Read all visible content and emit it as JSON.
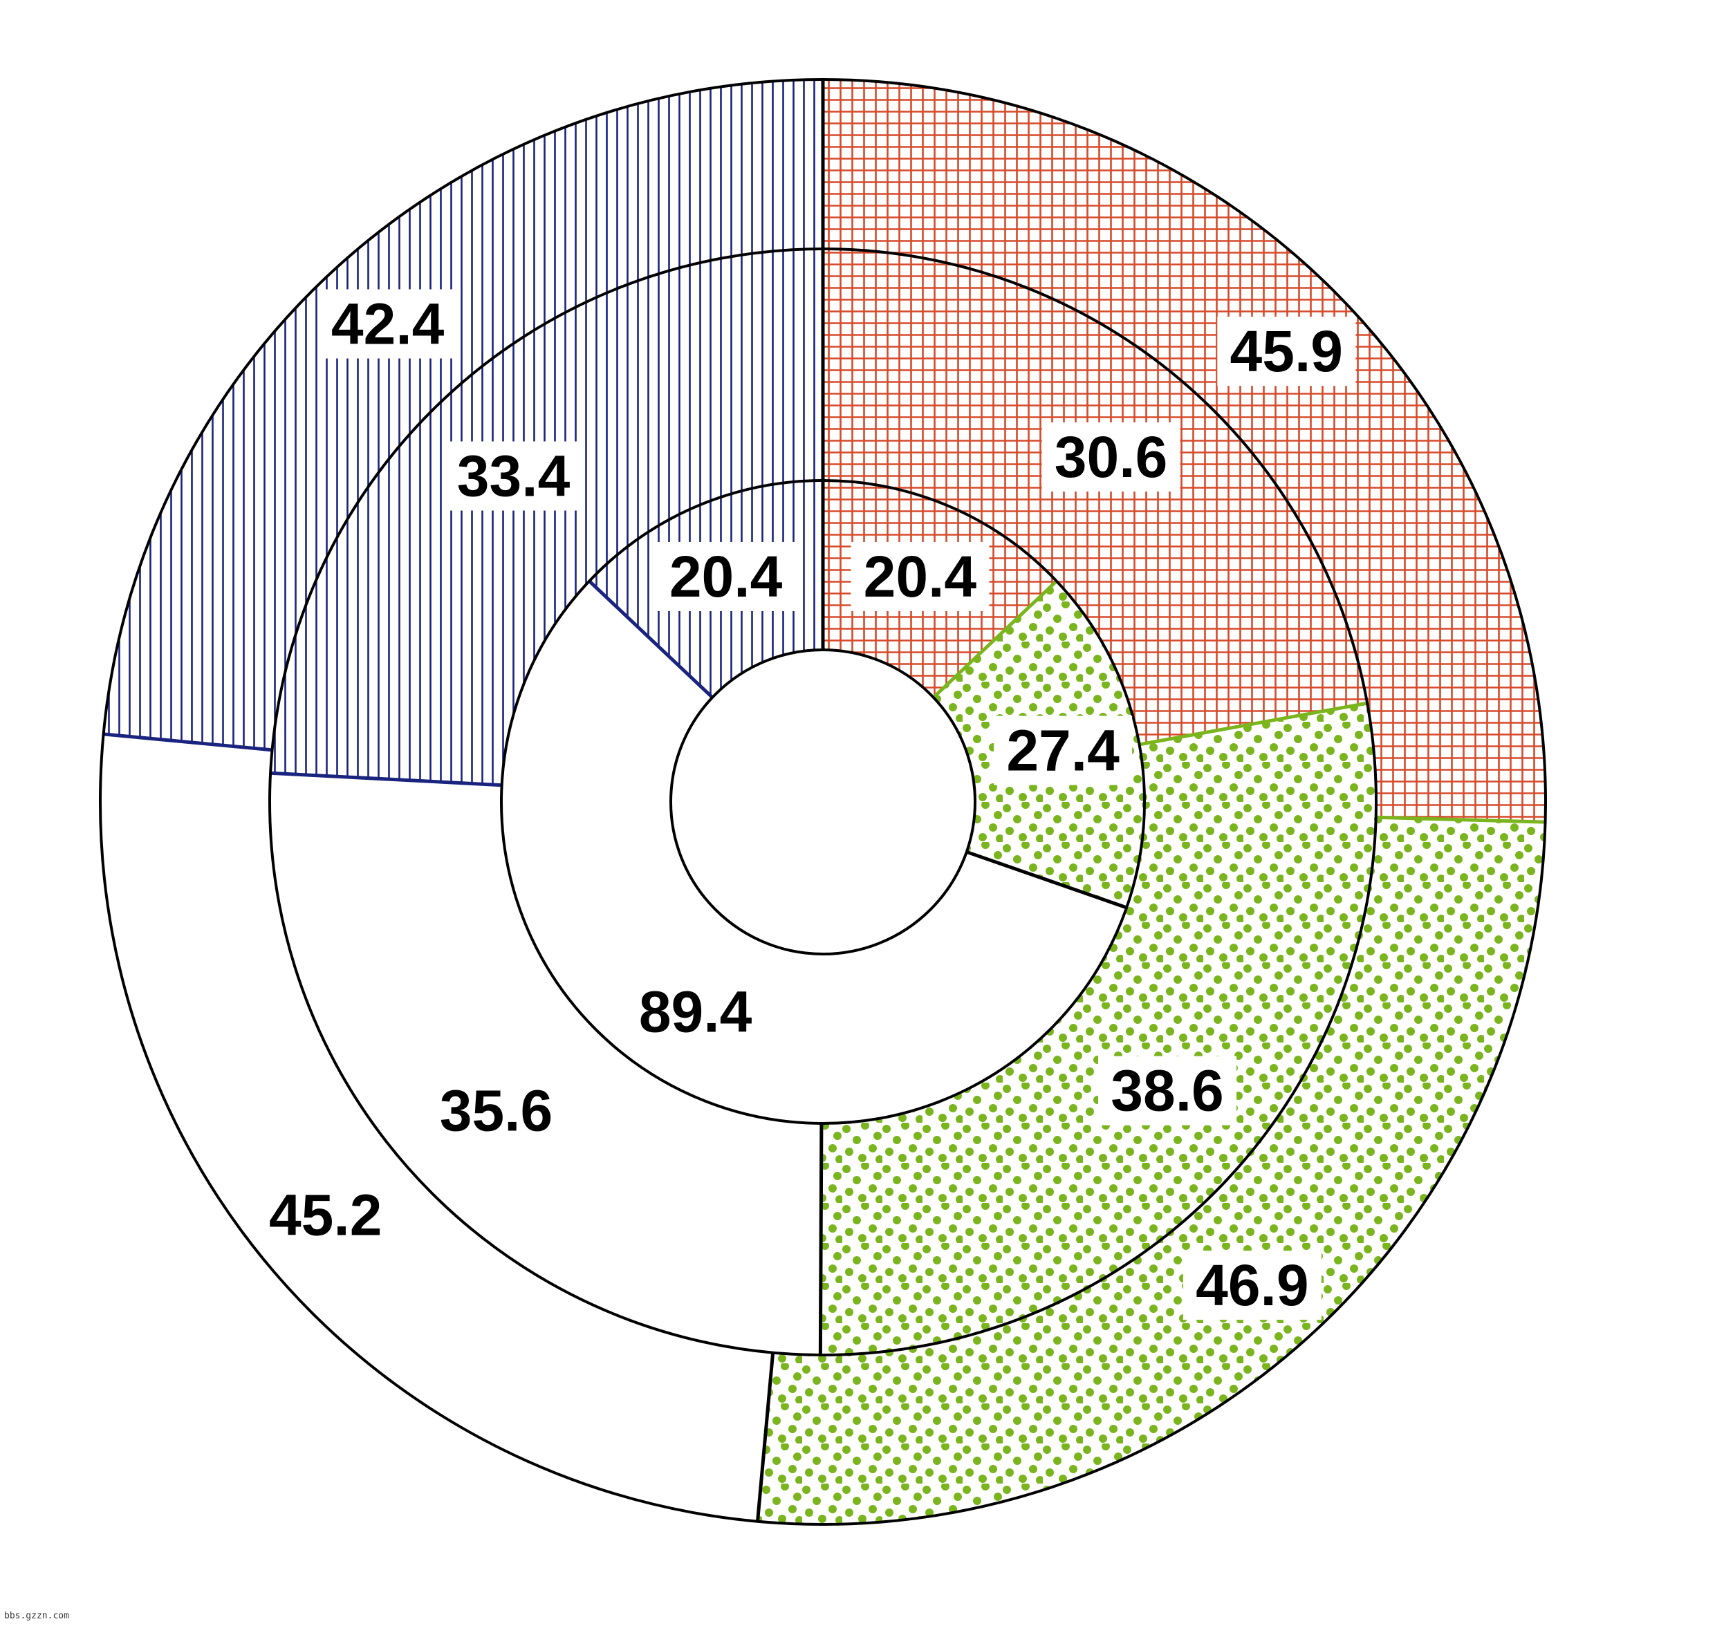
{
  "chart_data": {
    "type": "pie",
    "subtype": "concentric-donut",
    "rings": [
      {
        "ring": "inner",
        "segments": [
          {
            "value": 20.4,
            "color": "#c8321e",
            "pattern": "grid"
          },
          {
            "value": 27.4,
            "color": "#7ab51d",
            "pattern": "dots"
          },
          {
            "value": 89.4,
            "color": "#ffffff",
            "pattern": "none"
          },
          {
            "value": 20.4,
            "color": "#1a237e",
            "pattern": "vertical-lines"
          }
        ]
      },
      {
        "ring": "middle",
        "segments": [
          {
            "value": 30.6,
            "color": "#c8321e",
            "pattern": "grid"
          },
          {
            "value": 38.6,
            "color": "#7ab51d",
            "pattern": "dots"
          },
          {
            "value": 35.6,
            "color": "#ffffff",
            "pattern": "none"
          },
          {
            "value": 33.4,
            "color": "#1a237e",
            "pattern": "vertical-lines"
          }
        ]
      },
      {
        "ring": "outer",
        "segments": [
          {
            "value": 45.9,
            "color": "#c8321e",
            "pattern": "grid"
          },
          {
            "value": 46.9,
            "color": "#7ab51d",
            "pattern": "dots"
          },
          {
            "value": 45.2,
            "color": "#ffffff",
            "pattern": "none"
          },
          {
            "value": 42.4,
            "color": "#1a237e",
            "pattern": "vertical-lines"
          }
        ]
      }
    ],
    "legend": "none",
    "title": ""
  },
  "footer": {
    "watermark": "bbs.gzzn.com"
  }
}
